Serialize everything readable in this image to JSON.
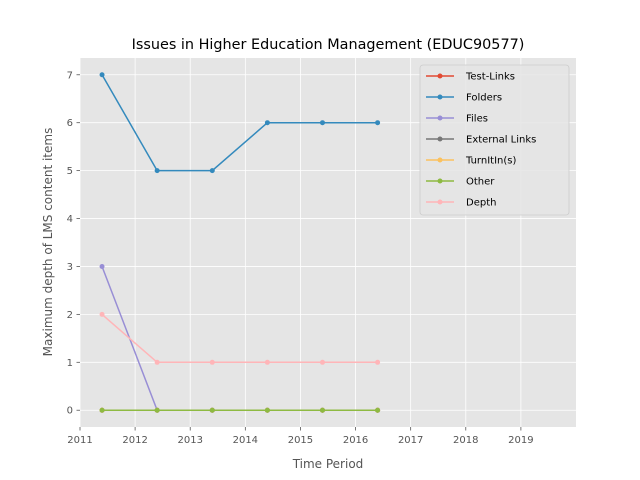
{
  "chart_data": {
    "type": "line",
    "title": "Issues in Higher Education Management (EDUC90577)",
    "xlabel": "Time Period",
    "ylabel": "Maximum depth of LMS content items",
    "xlim": [
      2011,
      2020
    ],
    "ylim": [
      -0.35,
      7.35
    ],
    "x_ticks": [
      "2011",
      "2012",
      "2013",
      "2014",
      "2015",
      "2016",
      "2017",
      "2018",
      "2019"
    ],
    "y_ticks": [
      "0",
      "1",
      "2",
      "3",
      "4",
      "5",
      "6",
      "7"
    ],
    "grid": true,
    "legend_position": "top-right",
    "x": [
      2011.4,
      2012.4,
      2013.4,
      2014.4,
      2015.4,
      2016.4
    ],
    "series": [
      {
        "name": "Test-Links",
        "color": "#E24A33",
        "values": [
          0,
          0,
          0,
          0,
          0,
          0
        ]
      },
      {
        "name": "Folders",
        "color": "#348ABD",
        "values": [
          7,
          5,
          5,
          6,
          6,
          6
        ]
      },
      {
        "name": "Files",
        "color": "#988ED5",
        "values": [
          3,
          0,
          0,
          0,
          0,
          0
        ]
      },
      {
        "name": "External Links",
        "color": "#777777",
        "values": [
          0,
          0,
          0,
          0,
          0,
          0
        ]
      },
      {
        "name": "TurnItIn(s)",
        "color": "#FBC15E",
        "values": [
          0,
          0,
          0,
          0,
          0,
          0
        ]
      },
      {
        "name": "Other",
        "color": "#8EBA42",
        "values": [
          0,
          0,
          0,
          0,
          0,
          0
        ]
      },
      {
        "name": "Depth",
        "color": "#FFB5B8",
        "values": [
          2,
          1,
          1,
          1,
          1,
          1
        ]
      }
    ]
  }
}
